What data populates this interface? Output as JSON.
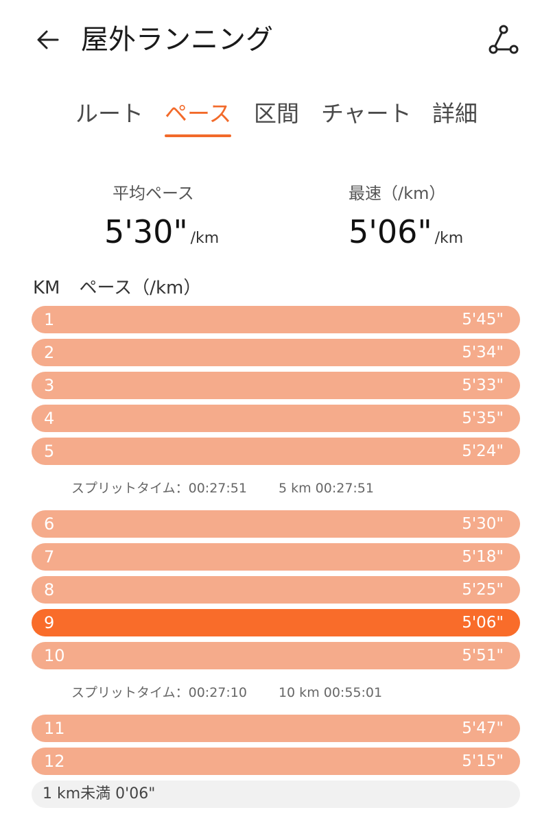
{
  "header": {
    "title": "屋外ランニング"
  },
  "tabs": [
    {
      "label": "ルート",
      "active": false
    },
    {
      "label": "ペース",
      "active": true
    },
    {
      "label": "区間",
      "active": false
    },
    {
      "label": "チャート",
      "active": false
    },
    {
      "label": "詳細",
      "active": false
    }
  ],
  "stats": {
    "avg": {
      "label": "平均ペース",
      "value": "5'30\"",
      "unit": "/km"
    },
    "fastest": {
      "label": "最速（/km）",
      "value": "5'06\"",
      "unit": "/km"
    }
  },
  "list": {
    "km_header": "KM",
    "pace_header": "ペース（/km）"
  },
  "colors": {
    "accent": "#f26a2a",
    "bar": "#f5ab8b",
    "bar_fastest": "#f96c2a",
    "track": "#f1f1f1"
  },
  "splits_group1": [
    {
      "km": "1",
      "pace": "5'45\"",
      "seconds": 345
    },
    {
      "km": "2",
      "pace": "5'34\"",
      "seconds": 334
    },
    {
      "km": "3",
      "pace": "5'33\"",
      "seconds": 333
    },
    {
      "km": "4",
      "pace": "5'35\"",
      "seconds": 335
    },
    {
      "km": "5",
      "pace": "5'24\"",
      "seconds": 324
    }
  ],
  "split_summary1": {
    "label": "スプリットタイム：00:27:51",
    "total": "5 km 00:27:51"
  },
  "splits_group2": [
    {
      "km": "6",
      "pace": "5'30\"",
      "seconds": 330
    },
    {
      "km": "7",
      "pace": "5'18\"",
      "seconds": 318
    },
    {
      "km": "8",
      "pace": "5'25\"",
      "seconds": 325
    },
    {
      "km": "9",
      "pace": "5'06\"",
      "seconds": 306,
      "fastest": true
    },
    {
      "km": "10",
      "pace": "5'51\"",
      "seconds": 351
    }
  ],
  "split_summary2": {
    "label": "スプリットタイム：00:27:10",
    "total": "10 km 00:55:01"
  },
  "splits_group3": [
    {
      "km": "11",
      "pace": "5'47\"",
      "seconds": 347
    },
    {
      "km": "12",
      "pace": "5'15\"",
      "seconds": 315
    }
  ],
  "remainder": {
    "label": "1 km未満 0'06\""
  }
}
